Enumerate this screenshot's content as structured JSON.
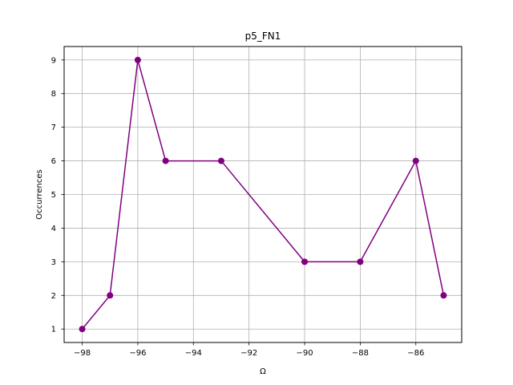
{
  "chart_data": {
    "type": "line",
    "title": "p5_FN1",
    "xlabel": "Ω",
    "ylabel": "Occurrences",
    "x": [
      -98,
      -97,
      -96,
      -95,
      -93,
      -90,
      -88,
      -86,
      -85
    ],
    "series": [
      {
        "values": [
          1,
          2,
          9,
          6,
          6,
          3,
          3,
          6,
          2
        ],
        "color": "#800080"
      }
    ],
    "xlim": [
      -98.65,
      -84.35
    ],
    "ylim": [
      0.6,
      9.4
    ],
    "xticks": [
      -98,
      -96,
      -94,
      -92,
      -90,
      -88,
      -86
    ],
    "yticks": [
      1,
      2,
      3,
      4,
      5,
      6,
      7,
      8,
      9
    ],
    "grid": true,
    "marker": "circle"
  }
}
